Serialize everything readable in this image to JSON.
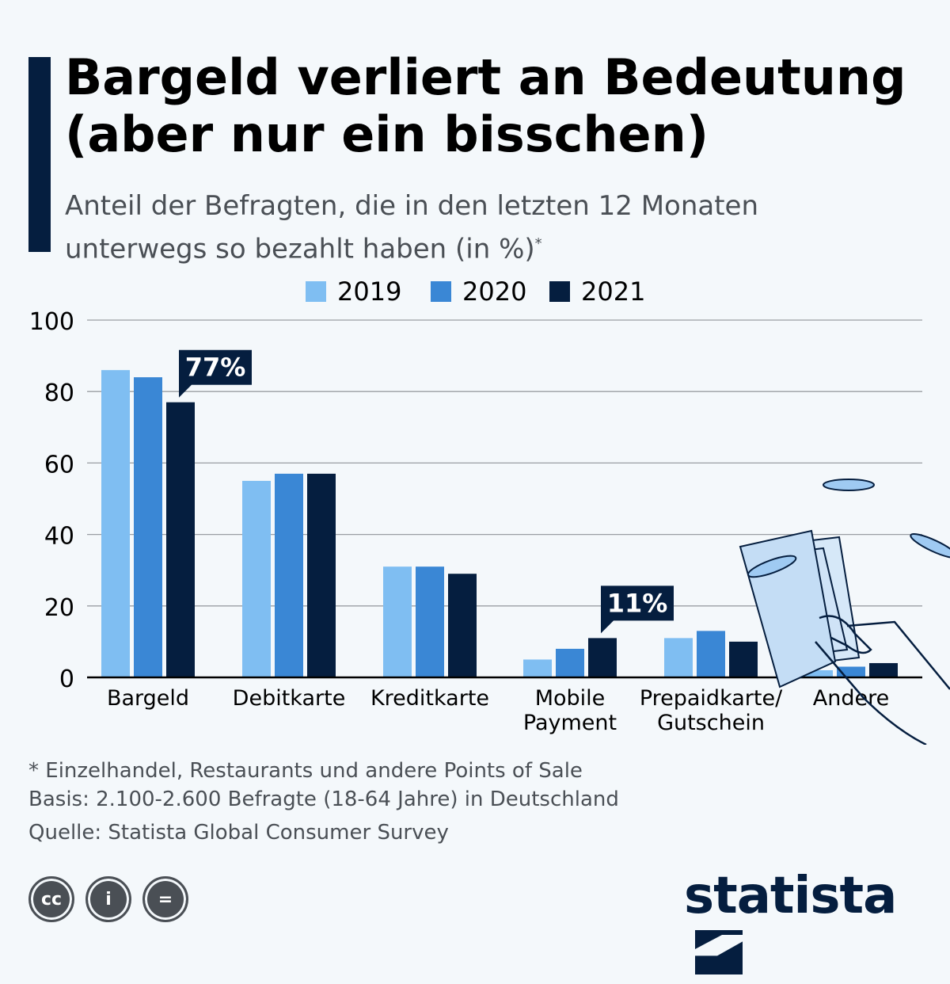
{
  "title": "Bargeld verliert an Bedeutung (aber nur ein bisschen)",
  "subtitle": "Anteil der Befragten, die in den letzten 12 Monaten unterwegs so bezahlt haben (in %)",
  "subtitle_mark": "*",
  "chart_data": {
    "type": "bar",
    "categories": [
      "Bargeld",
      "Debitkarte",
      "Kreditkarte",
      "Mobile Payment",
      "Prepaidkarte/ Gutschein",
      "Andere"
    ],
    "category_lines": [
      [
        "Bargeld"
      ],
      [
        "Debitkarte"
      ],
      [
        "Kreditkarte"
      ],
      [
        "Mobile",
        "Payment"
      ],
      [
        "Prepaidkarte/",
        "Gutschein"
      ],
      [
        "Andere"
      ]
    ],
    "series": [
      {
        "name": "2019",
        "color": "#7fbef2",
        "values": [
          86,
          55,
          31,
          5,
          11,
          2
        ]
      },
      {
        "name": "2020",
        "color": "#3a87d5",
        "values": [
          84,
          57,
          31,
          8,
          13,
          3
        ]
      },
      {
        "name": "2021",
        "color": "#051e3f",
        "values": [
          77,
          57,
          29,
          11,
          10,
          4
        ]
      }
    ],
    "yticks": [
      0,
      20,
      40,
      60,
      80,
      100
    ],
    "ylim": [
      0,
      100
    ],
    "grid": true,
    "legend": "top",
    "annotations": [
      {
        "category": "Bargeld",
        "series": "2021",
        "text": "77%"
      },
      {
        "category": "Mobile Payment",
        "series": "2021",
        "text": "11%"
      }
    ]
  },
  "footnotes": [
    "* Einzelhandel, Restaurants und andere Points of Sale",
    "Basis: 2.100-2.600 Befragte (18-64 Jahre) in Deutschland",
    "Quelle: Statista Global Consumer Survey"
  ],
  "license_icons": [
    "cc-icon",
    "attribution-icon",
    "no-derivatives-icon"
  ],
  "license_labels": [
    "cc",
    "i",
    "="
  ],
  "brand": "statista"
}
